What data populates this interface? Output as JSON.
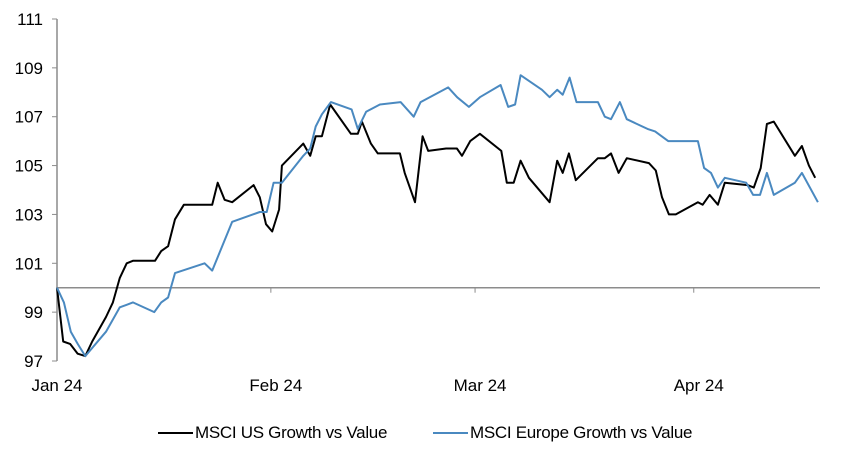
{
  "chart_data": {
    "type": "line",
    "title": "",
    "xlabel": "",
    "ylabel": "",
    "ylim": [
      97,
      111
    ],
    "yticks": [
      97,
      99,
      101,
      103,
      105,
      107,
      109,
      111
    ],
    "ytick_labels": [
      "97",
      "99",
      "101",
      "103",
      "105",
      "107",
      "109",
      "111"
    ],
    "x_unit": "days since 1 Jan 2024",
    "xlim": [
      0,
      110.6
    ],
    "xticks": [
      0,
      31,
      60.6,
      92.3
    ],
    "xtick_labels": [
      "Jan 24",
      "Feb 24",
      "Mar 24",
      "Apr 24"
    ],
    "baseline": 100,
    "grid": false,
    "legend_position": "bottom",
    "series": [
      {
        "name": "MSCI US Growth vs Value",
        "color": "#000000",
        "x": [
          0,
          0.9,
          1.9,
          3.0,
          4.1,
          5.1,
          6.1,
          7.1,
          8.1,
          9.1,
          10.1,
          11.0,
          14.2,
          15.1,
          16.1,
          17.1,
          18.4,
          21.4,
          22.5,
          23.3,
          24.3,
          25.4,
          28.5,
          29.4,
          30.3,
          31.2,
          32.2,
          32.6,
          35.7,
          36.7,
          37.5,
          38.4,
          39.6,
          42.6,
          43.6,
          44.2,
          45.5,
          46.5,
          49.7,
          50.4,
          51.9,
          53.0,
          53.8,
          56.4,
          57.97,
          58.7,
          59.9,
          61.3,
          64.4,
          65.2,
          66.2,
          67.2,
          68.4,
          71.4,
          72.5,
          73.3,
          74.2,
          75.2,
          78.4,
          79.4,
          80.3,
          81.4,
          82.6,
          85.8,
          86.8,
          87.7,
          88.7,
          89.7,
          92.9,
          93.6,
          94.6,
          95.8,
          96.8,
          100.1,
          101.0,
          102.0,
          102.9,
          103.9,
          106.96,
          107.97,
          108.99,
          109.9
        ],
        "values": [
          100,
          97.8,
          97.7,
          97.3,
          97.2,
          97.8,
          98.3,
          98.8,
          99.4,
          100.4,
          101.0,
          101.1,
          101.1,
          101.5,
          101.7,
          102.8,
          103.4,
          103.4,
          103.4,
          104.3,
          103.6,
          103.5,
          104.2,
          103.7,
          102.6,
          102.3,
          103.2,
          105.0,
          105.9,
          105.4,
          106.2,
          106.2,
          107.5,
          106.3,
          106.3,
          106.8,
          105.9,
          105.5,
          105.5,
          104.7,
          103.5,
          106.2,
          105.6,
          105.7,
          105.7,
          105.4,
          106.0,
          106.3,
          105.6,
          104.3,
          104.3,
          105.2,
          104.5,
          103.5,
          105.2,
          104.7,
          105.5,
          104.4,
          105.3,
          105.3,
          105.5,
          104.7,
          105.3,
          105.1,
          104.8,
          103.7,
          103.0,
          103.0,
          103.5,
          103.4,
          103.8,
          103.4,
          104.3,
          104.2,
          104.1,
          104.9,
          106.7,
          106.8,
          105.4,
          105.8,
          105.0,
          104.5
        ]
      },
      {
        "name": "MSCI Europe Growth vs Value",
        "color": "#4a89c0",
        "x": [
          0,
          1.0,
          2.0,
          3.0,
          4.1,
          7.1,
          8.1,
          9.1,
          10.1,
          11.0,
          14.1,
          15.1,
          16.1,
          17.1,
          21.4,
          22.5,
          25.4,
          29.4,
          30.4,
          31.4,
          32.6,
          35.7,
          36.7,
          37.5,
          38.4,
          39.7,
          42.7,
          43.6,
          44.8,
          46.8,
          49.8,
          51.7,
          52.7,
          56.7,
          58.0,
          59.7,
          61.3,
          64.3,
          65.4,
          66.4,
          67.2,
          70.3,
          71.4,
          72.5,
          73.3,
          74.3,
          75.3,
          78.4,
          79.4,
          80.3,
          81.6,
          82.6,
          85.6,
          86.7,
          88.6,
          92.9,
          93.8,
          94.8,
          95.8,
          96.8,
          99.9,
          100.9,
          101.9,
          102.9,
          103.9,
          106.96,
          107.97,
          110.3
        ],
        "values": [
          100,
          99.4,
          98.2,
          97.7,
          97.2,
          98.2,
          98.7,
          99.2,
          99.3,
          99.4,
          99.0,
          99.4,
          99.6,
          100.6,
          101.0,
          100.7,
          102.7,
          103.1,
          103.1,
          104.3,
          104.3,
          105.4,
          105.7,
          106.6,
          107.1,
          107.6,
          107.3,
          106.5,
          107.2,
          107.5,
          107.6,
          107.0,
          107.6,
          108.2,
          107.8,
          107.4,
          107.8,
          108.3,
          107.4,
          107.5,
          108.7,
          108.1,
          107.8,
          108.1,
          107.9,
          108.6,
          107.6,
          107.6,
          107.0,
          106.9,
          107.6,
          106.9,
          106.5,
          106.4,
          106.0,
          106.0,
          104.9,
          104.7,
          104.1,
          104.5,
          104.3,
          103.8,
          103.8,
          104.7,
          103.8,
          104.3,
          104.7,
          103.5
        ]
      }
    ]
  },
  "legend": {
    "items": [
      {
        "label": "MSCI US Growth vs Value",
        "color": "#000000"
      },
      {
        "label": "MSCI Europe Growth vs Value",
        "color": "#4a89c0"
      }
    ]
  }
}
